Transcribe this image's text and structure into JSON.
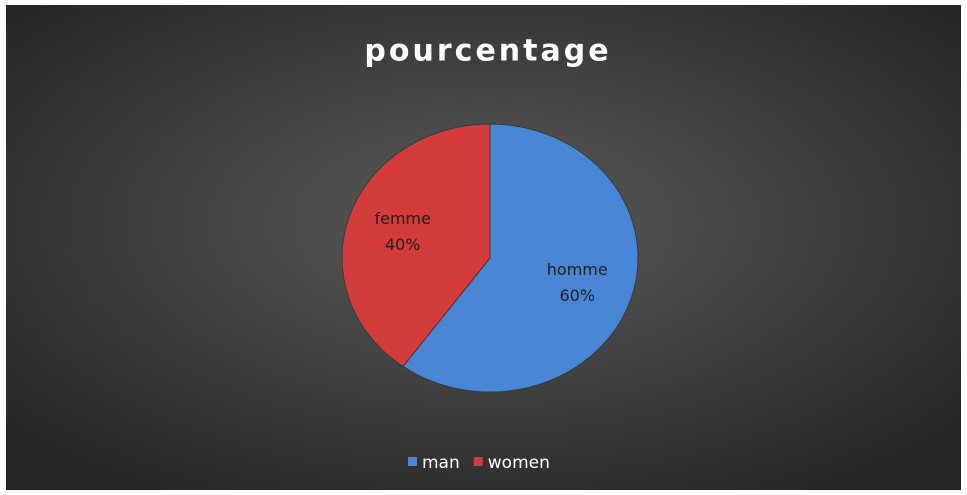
{
  "chart_data": {
    "type": "pie",
    "title": "pourcentage",
    "categories": [
      "man",
      "women"
    ],
    "slice_labels": [
      "homme",
      "femme"
    ],
    "values": [
      60,
      40
    ],
    "value_labels": [
      "60%",
      "40%"
    ],
    "colors": [
      "#4a86d6",
      "#d43c3c"
    ],
    "legend": "bottom"
  }
}
